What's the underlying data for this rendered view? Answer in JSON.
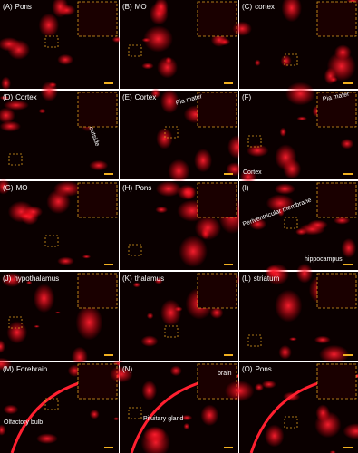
{
  "panels": [
    {
      "letter": "(A)",
      "title": "Pons"
    },
    {
      "letter": "(B)",
      "title": "MO"
    },
    {
      "letter": "(C)",
      "title": "cortex"
    },
    {
      "letter": "(D)",
      "title": "Cortex",
      "labels": [
        "outside"
      ]
    },
    {
      "letter": "(E)",
      "title": "Cortex",
      "labels": [
        "Pia mater"
      ]
    },
    {
      "letter": "(F)",
      "labels": [
        "Pia mater",
        "Cortex"
      ]
    },
    {
      "letter": "(G)",
      "title": "MO"
    },
    {
      "letter": "(H)",
      "title": "Pons"
    },
    {
      "letter": "(I)",
      "labels": [
        "Periventricular membrane",
        "hippocampus"
      ]
    },
    {
      "letter": "(J)",
      "title": "hypothalamus"
    },
    {
      "letter": "(K)",
      "title": "thalamus"
    },
    {
      "letter": "(L)",
      "title": "striatum"
    },
    {
      "letter": "(M)",
      "title": "Forebrain",
      "labels": [
        "Olfactory bulb"
      ]
    },
    {
      "letter": "(N)",
      "labels": [
        "brain",
        "Pituitary gland"
      ]
    },
    {
      "letter": "(O)",
      "title": "Pons"
    }
  ]
}
